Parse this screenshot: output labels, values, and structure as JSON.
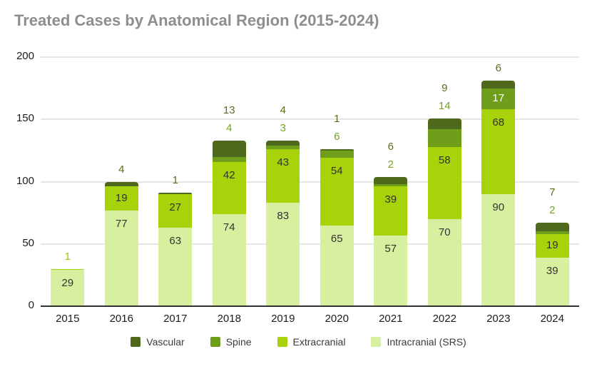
{
  "chart_data": {
    "type": "bar",
    "stacked": true,
    "title": "Treated Cases by Anatomical Region (2015-2024)",
    "title_color": "#8e8e8e",
    "categories": [
      "2015",
      "2016",
      "2017",
      "2018",
      "2019",
      "2020",
      "2021",
      "2022",
      "2023",
      "2024"
    ],
    "series": [
      {
        "name": "Intracranial (SRS)",
        "color": "#d8efa0",
        "values": [
          29,
          77,
          63,
          74,
          83,
          65,
          57,
          70,
          90,
          39
        ]
      },
      {
        "name": "Extracranial",
        "color": "#a8d20a",
        "annotation_color": "#a2c414",
        "values": [
          1,
          19,
          27,
          42,
          43,
          54,
          39,
          58,
          68,
          19
        ]
      },
      {
        "name": "Spine",
        "color": "#6f9e1b",
        "annotation_color": "#75a322",
        "values": [
          0,
          0,
          0,
          4,
          3,
          6,
          2,
          14,
          17,
          2
        ]
      },
      {
        "name": "Vascular",
        "color": "#4f691c",
        "annotation_color": "#556f1e",
        "values": [
          0,
          4,
          1,
          13,
          4,
          1,
          6,
          9,
          6,
          7
        ]
      }
    ],
    "totals": [
      30,
      100,
      91,
      133,
      133,
      126,
      104,
      151,
      181,
      67
    ],
    "ylim": [
      0,
      200
    ],
    "yticks": [
      0,
      50,
      100,
      150,
      200
    ],
    "grid": true,
    "legend_position": "bottom",
    "legend": [
      "Vascular",
      "Spine",
      "Extracranial",
      "Intracranial (SRS)"
    ]
  }
}
